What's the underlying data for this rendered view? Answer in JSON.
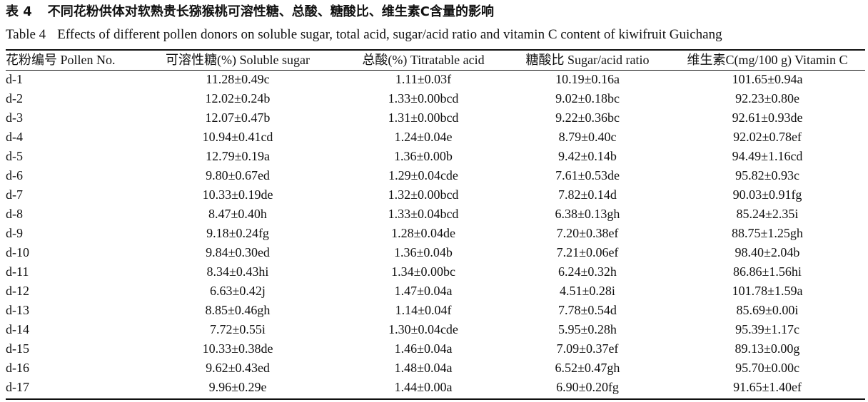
{
  "caption": {
    "cn_label": "表 4",
    "cn_title": "不同花粉供体对软熟贵长猕猴桃可溶性糖、总酸、糖酸比、维生素C含量的影响",
    "en_label": "Table 4",
    "en_title": "Effects of different pollen donors on soluble sugar, total acid, sugar/acid ratio and vitamin C content of kiwifruit Guichang"
  },
  "table": {
    "headers": [
      "花粉编号 Pollen No.",
      "可溶性糖(%) Soluble sugar",
      "总酸(%) Titratable acid",
      "糖酸比 Sugar/acid ratio",
      "维生素C(mg/100 g) Vitamin C"
    ],
    "rows": [
      [
        "d-1",
        "11.28±0.49c",
        "1.11±0.03f",
        "10.19±0.16a",
        "101.65±0.94a"
      ],
      [
        "d-2",
        "12.02±0.24b",
        "1.33±0.00bcd",
        "9.02±0.18bc",
        "92.23±0.80e"
      ],
      [
        "d-3",
        "12.07±0.47b",
        "1.31±0.00bcd",
        "9.22±0.36bc",
        "92.61±0.93de"
      ],
      [
        "d-4",
        "10.94±0.41cd",
        "1.24±0.04e",
        "8.79±0.40c",
        "92.02±0.78ef"
      ],
      [
        "d-5",
        "12.79±0.19a",
        "1.36±0.00b",
        "9.42±0.14b",
        "94.49±1.16cd"
      ],
      [
        "d-6",
        "9.80±0.67ed",
        "1.29±0.04cde",
        "7.61±0.53de",
        "95.82±0.93c"
      ],
      [
        "d-7",
        "10.33±0.19de",
        "1.32±0.00bcd",
        "7.82±0.14d",
        "90.03±0.91fg"
      ],
      [
        "d-8",
        "8.47±0.40h",
        "1.33±0.04bcd",
        "6.38±0.13gh",
        "85.24±2.35i"
      ],
      [
        "d-9",
        "9.18±0.24fg",
        "1.28±0.04de",
        "7.20±0.38ef",
        "88.75±1.25gh"
      ],
      [
        "d-10",
        "9.84±0.30ed",
        "1.36±0.04b",
        "7.21±0.06ef",
        "98.40±2.04b"
      ],
      [
        "d-11",
        "8.34±0.43hi",
        "1.34±0.00bc",
        "6.24±0.32h",
        "86.86±1.56hi"
      ],
      [
        "d-12",
        "6.63±0.42j",
        "1.47±0.04a",
        "4.51±0.28i",
        "101.78±1.59a"
      ],
      [
        "d-13",
        "8.85±0.46gh",
        "1.14±0.04f",
        "7.78±0.54d",
        "85.69±0.00i"
      ],
      [
        "d-14",
        "7.72±0.55i",
        "1.30±0.04cde",
        "5.95±0.28h",
        "95.39±1.17c"
      ],
      [
        "d-15",
        "10.33±0.38de",
        "1.46±0.04a",
        "7.09±0.37ef",
        "89.13±0.00g"
      ],
      [
        "d-16",
        "9.62±0.43ed",
        "1.48±0.04a",
        "6.52±0.47gh",
        "95.70±0.00c"
      ],
      [
        "d-17",
        "9.96±0.29e",
        "1.44±0.00a",
        "6.90±0.20fg",
        "91.65±1.40ef"
      ]
    ]
  }
}
